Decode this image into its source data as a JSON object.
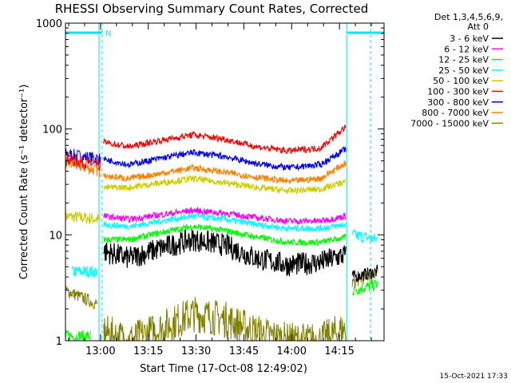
{
  "chart_data": {
    "type": "line",
    "title": "RHESSI Observing Summary Count Rates, Corrected",
    "xlabel": "Start Time (17-Oct-08 12:49:02)",
    "ylabel": "Corrected Count Rate (s⁻¹ detector⁻¹)",
    "y_scale": "log",
    "ylim": [
      1,
      1000
    ],
    "xlim_minutes": [
      0,
      100
    ],
    "x_tick_labels": [
      "13:00",
      "13:15",
      "13:30",
      "13:45",
      "14:00",
      "14:15"
    ],
    "x_tick_minutes": [
      11,
      26,
      41,
      56,
      71,
      86
    ],
    "y_tick_labels": [
      "1",
      "10",
      "100",
      "1000"
    ],
    "y_tick_values": [
      1,
      10,
      100,
      1000
    ],
    "legend_header": [
      "Det 1,3,4,5,6,9,",
      "Att 0"
    ],
    "legend_position": "right",
    "data_window_minutes": [
      11.5,
      88.5
    ],
    "night_intervals_minutes": [
      [
        0,
        11.5
      ],
      [
        88.5,
        100
      ]
    ],
    "flag_label": "N",
    "timestamp": "15-Oct-2021 17:33",
    "series": [
      {
        "name": "3 - 6 keV",
        "color": "#000000",
        "x": [
          12,
          20,
          30,
          40,
          50,
          60,
          70,
          80,
          88
        ],
        "y": [
          7,
          6,
          7.5,
          9,
          8,
          6,
          5.2,
          5.5,
          6.5
        ]
      },
      {
        "name": "6 - 12 keV",
        "color": "#ff00ff",
        "x": [
          12,
          20,
          30,
          40,
          50,
          60,
          70,
          80,
          88
        ],
        "y": [
          15,
          14,
          15.5,
          17,
          16,
          14.5,
          13.5,
          13.5,
          15
        ]
      },
      {
        "name": "12 - 25 keV",
        "color": "#00ff00",
        "x": [
          12,
          20,
          30,
          40,
          50,
          60,
          70,
          80,
          88
        ],
        "y": [
          9,
          9,
          10.5,
          12,
          11,
          9.5,
          8.5,
          8.5,
          9.5
        ]
      },
      {
        "name": "25 - 50 keV",
        "color": "#00ffff",
        "x": [
          12,
          20,
          30,
          40,
          50,
          60,
          70,
          80,
          88
        ],
        "y": [
          12.5,
          12,
          13.5,
          15,
          14,
          12.5,
          11.5,
          11.5,
          12.5
        ]
      },
      {
        "name": "50 - 100 keV",
        "color": "#cccc00",
        "x": [
          12,
          20,
          30,
          40,
          50,
          60,
          70,
          80,
          88
        ],
        "y": [
          28,
          28,
          31,
          34,
          31,
          28,
          26,
          27,
          32
        ]
      },
      {
        "name": "100 - 300 keV",
        "color": "#ff0000",
        "x": [
          12,
          20,
          30,
          40,
          50,
          60,
          70,
          80,
          88
        ],
        "y": [
          75,
          68,
          78,
          88,
          80,
          68,
          62,
          66,
          105
        ]
      },
      {
        "name": "300 - 800 keV",
        "color": "#0000ff",
        "x": [
          12,
          20,
          30,
          40,
          50,
          60,
          70,
          80,
          88
        ],
        "y": [
          52,
          46,
          53,
          60,
          55,
          47,
          43,
          46,
          65
        ]
      },
      {
        "name": "800 - 7000 keV",
        "color": "#ff8000",
        "x": [
          12,
          20,
          30,
          40,
          50,
          60,
          70,
          80,
          88
        ],
        "y": [
          36,
          34,
          38,
          43,
          39,
          35,
          32,
          34,
          48
        ]
      },
      {
        "name": "7000 - 15000 keV",
        "color": "#808000",
        "x": [
          12,
          20,
          30,
          40,
          50,
          60,
          70,
          80,
          88
        ],
        "y": [
          1.2,
          1,
          1.3,
          1.8,
          1.6,
          1.2,
          1,
          1,
          1.3
        ]
      }
    ],
    "pre_window_series": [
      {
        "name": "50 - 100 keV",
        "color": "#cccc00",
        "x": [
          0,
          11
        ],
        "y": [
          15,
          14
        ]
      },
      {
        "name": "300 - 800 keV",
        "color": "#0000ff",
        "x": [
          0,
          11
        ],
        "y": [
          58,
          52
        ]
      },
      {
        "name": "800 - 7000 keV",
        "color": "#ff8000",
        "x": [
          0,
          11
        ],
        "y": [
          48,
          40
        ]
      },
      {
        "name": "100 - 300 keV",
        "color": "#ff0000",
        "x": [
          0,
          11
        ],
        "y": [
          52,
          45
        ]
      },
      {
        "name": "25 - 50 keV",
        "color": "#00ffff",
        "x": [
          2,
          10
        ],
        "y": [
          4.5,
          4.5
        ]
      },
      {
        "name": "7000 - 15000 keV",
        "color": "#808000",
        "x": [
          0,
          10
        ],
        "y": [
          3,
          2.2
        ]
      },
      {
        "name": "12 - 25 keV",
        "color": "#00ff00",
        "x": [
          0,
          8
        ],
        "y": [
          1.1,
          1.1
        ]
      }
    ],
    "post_window_series": [
      {
        "name": "25 - 50 keV",
        "color": "#00ffff",
        "x": [
          90,
          98
        ],
        "y": [
          10,
          9
        ]
      },
      {
        "name": "12 - 25 keV",
        "color": "#00ff00",
        "x": [
          90,
          98
        ],
        "y": [
          3,
          3.4
        ]
      },
      {
        "name": "7000 - 15000 keV",
        "color": "#808000",
        "x": [
          90,
          98
        ],
        "y": [
          3.5,
          4.5
        ]
      },
      {
        "name": "3 - 6 keV",
        "color": "#000000",
        "x": [
          90,
          98
        ],
        "y": [
          4,
          4.5
        ]
      }
    ]
  }
}
